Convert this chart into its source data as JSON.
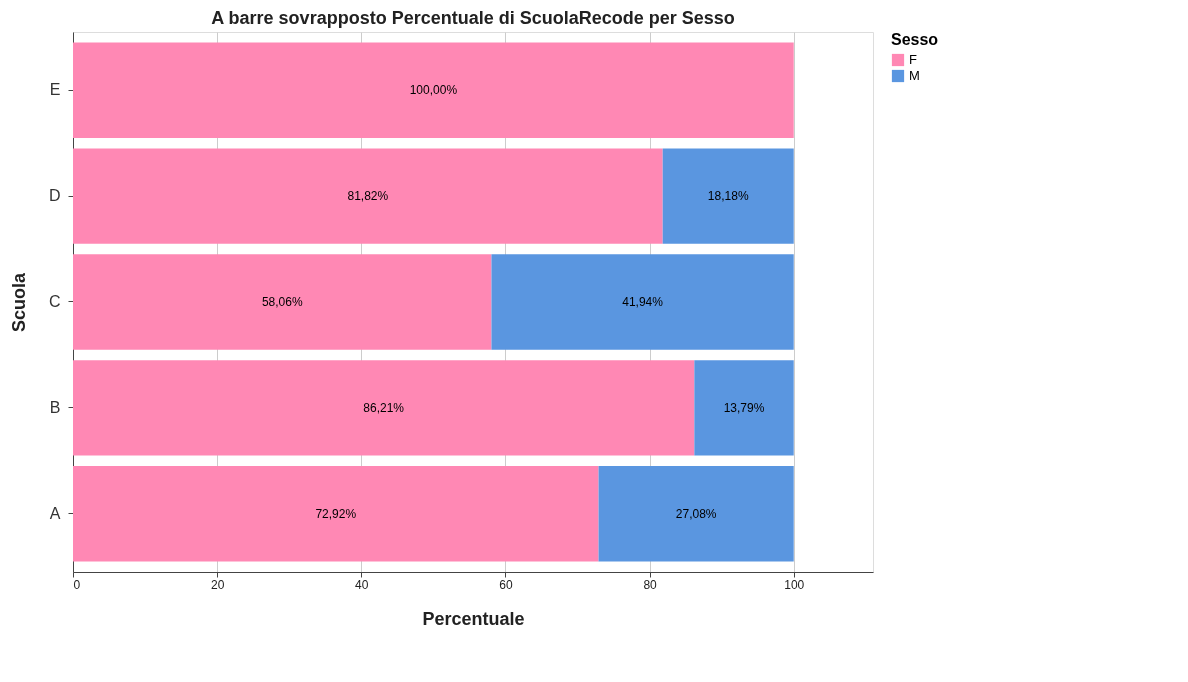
{
  "chart_data": {
    "type": "bar",
    "orientation": "horizontal",
    "stacked": true,
    "title": "A barre sovrapposto Percentuale di ScuolaRecode per Sesso",
    "xlabel": "Percentuale",
    "ylabel": "Scuola",
    "legend_title": "Sesso",
    "categories": [
      "E",
      "D",
      "C",
      "B",
      "A"
    ],
    "series": [
      {
        "name": "F",
        "color": "#ff88b4",
        "values": [
          100,
          81.82,
          58.06,
          86.21,
          72.92
        ],
        "value_labels": [
          "100,00%",
          "81,82%",
          "58,06%",
          "86,21%",
          "72,92%"
        ]
      },
      {
        "name": "M",
        "color": "#5a96e0",
        "values": [
          null,
          18.18,
          41.94,
          13.79,
          27.08
        ],
        "value_labels": [
          null,
          "18,18%",
          "41,94%",
          "13,79%",
          "27,08%"
        ]
      }
    ],
    "xlim": [
      0,
      111
    ],
    "xticks": [
      0,
      20,
      40,
      60,
      80,
      100
    ],
    "grid": "x",
    "legend": "top right"
  }
}
